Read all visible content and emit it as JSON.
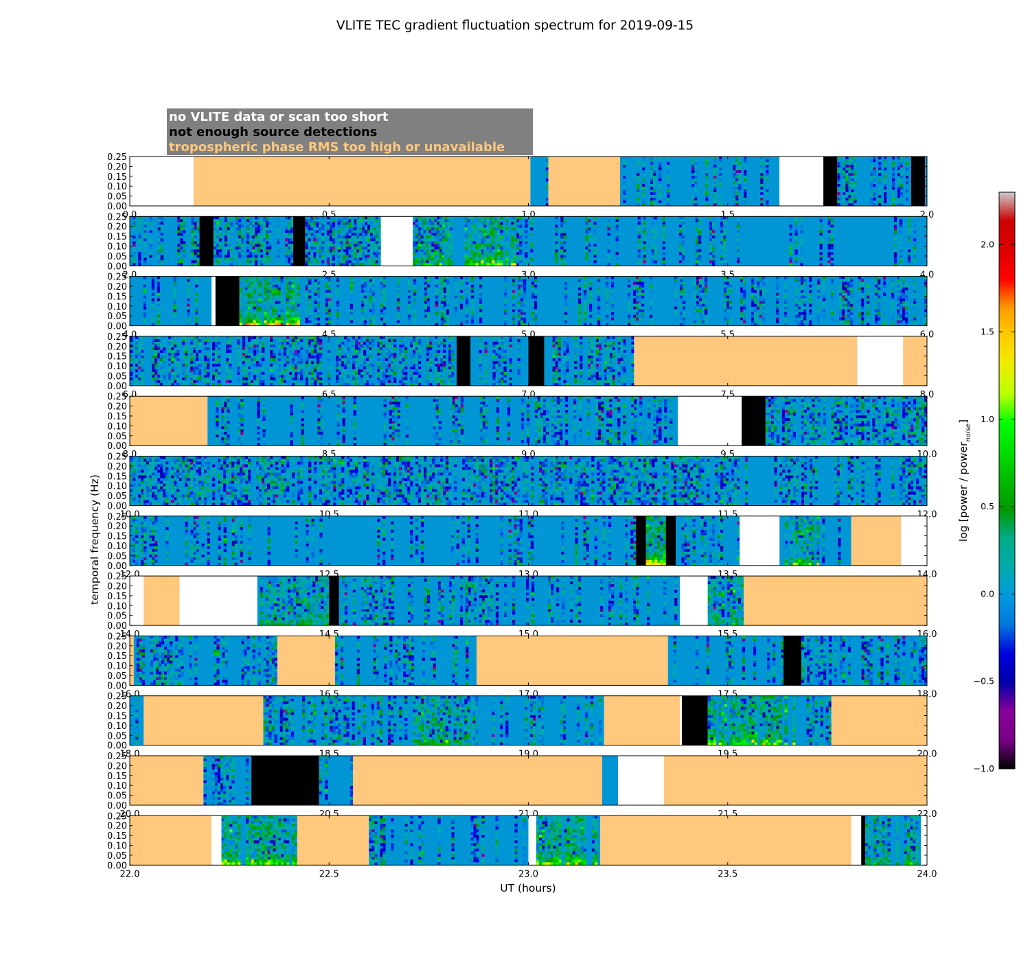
{
  "chart_data": {
    "type": "heatmap",
    "title": "VLITE TEC gradient fluctuation spectrum for 2019-09-15",
    "xlabel": "UT (hours)",
    "ylabel": "temporal frequency (Hz)",
    "ylim": [
      0,
      0.25
    ],
    "yticks": [
      0.0,
      0.05,
      0.1,
      0.15,
      0.2,
      0.25
    ],
    "ytick_labels": [
      "0.00",
      "0.05",
      "0.10",
      "0.15",
      "0.20",
      "0.25"
    ],
    "legend": [
      {
        "label": "no VLITE data or scan too short",
        "text_color": "#ffffff"
      },
      {
        "label": "not enough source detections",
        "text_color": "#000000"
      },
      {
        "label": "tropospheric phase RMS too high or unavailable",
        "text_color": "#ffc87c"
      }
    ],
    "colorbar": {
      "label": "log [power / power",
      "label_sub": "noise",
      "label_end": "]",
      "range": [
        -1.0,
        2.3
      ],
      "ticks": [
        -1.0,
        -0.5,
        0.0,
        0.5,
        1.0,
        1.5,
        2.0
      ],
      "tick_labels": [
        "−1.0",
        "−0.5",
        "0.0",
        "0.5",
        "1.0",
        "1.5",
        "2.0"
      ],
      "colormap": "nipy_spectral"
    },
    "category_colors": {
      "none": "#ffffff",
      "black": "#000000",
      "tropo": "#ffc87c",
      "base": "#0096d6"
    },
    "rows": [
      {
        "xlim": [
          0.0,
          2.0
        ],
        "tick_labels": [
          "0.0",
          "0.5",
          "1.0",
          "1.5",
          "2.0"
        ],
        "segments": [
          [
            0,
            0.16,
            "none"
          ],
          [
            0.16,
            1.005,
            "tropo"
          ],
          [
            1.005,
            1.05,
            "data",
            0.2
          ],
          [
            1.05,
            1.23,
            "tropo"
          ],
          [
            1.23,
            1.63,
            "data",
            0.3
          ],
          [
            1.63,
            1.74,
            "none"
          ],
          [
            1.74,
            1.775,
            "black"
          ],
          [
            1.775,
            1.96,
            "data",
            0.7
          ],
          [
            1.96,
            1.995,
            "black"
          ],
          [
            1.995,
            2.0,
            "data",
            0.2
          ]
        ]
      },
      {
        "xlim": [
          2.0,
          4.0
        ],
        "tick_labels": [
          "2.0",
          "2.5",
          "3.0",
          "3.5",
          "4.0"
        ],
        "segments": [
          [
            2.0,
            2.175,
            "data",
            0.7
          ],
          [
            2.175,
            2.21,
            "black"
          ],
          [
            2.21,
            2.41,
            "data",
            0.7
          ],
          [
            2.41,
            2.44,
            "black"
          ],
          [
            2.44,
            2.63,
            "data",
            0.7
          ],
          [
            2.63,
            2.71,
            "none"
          ],
          [
            2.71,
            2.81,
            "data",
            0.8,
            0.5
          ],
          [
            2.81,
            2.84,
            "data",
            0.3
          ],
          [
            2.84,
            2.97,
            "data",
            0.85,
            0.9
          ],
          [
            2.97,
            4.0,
            "data",
            0.22
          ]
        ]
      },
      {
        "xlim": [
          4.0,
          6.0
        ],
        "tick_labels": [
          "4.0",
          "4.5",
          "5.0",
          "5.5",
          "6.0"
        ],
        "segments": [
          [
            4.0,
            4.205,
            "data",
            0.15
          ],
          [
            4.205,
            4.215,
            "none"
          ],
          [
            4.215,
            4.275,
            "black"
          ],
          [
            4.275,
            4.44,
            "data",
            0.85,
            1.2
          ],
          [
            4.44,
            4.47,
            "data",
            0.5
          ],
          [
            4.47,
            6.0,
            "data",
            0.38
          ]
        ]
      },
      {
        "xlim": [
          6.0,
          8.0
        ],
        "tick_labels": [
          "6.0",
          "6.5",
          "7.0",
          "7.5",
          "8.0"
        ],
        "segments": [
          [
            6.0,
            6.82,
            "data",
            0.75
          ],
          [
            6.82,
            6.855,
            "black"
          ],
          [
            6.855,
            7.0,
            "data",
            0.55
          ],
          [
            7.0,
            7.04,
            "black"
          ],
          [
            7.04,
            7.265,
            "data",
            0.7
          ],
          [
            7.265,
            7.825,
            "tropo"
          ],
          [
            7.825,
            7.94,
            "none"
          ],
          [
            7.94,
            8.0,
            "tropo"
          ]
        ]
      },
      {
        "xlim": [
          8.0,
          10.0
        ],
        "tick_labels": [
          "8.0",
          "8.5",
          "9.0",
          "9.5",
          "10.0"
        ],
        "segments": [
          [
            8.0,
            8.195,
            "tropo"
          ],
          [
            8.195,
            9.375,
            "data",
            0.35
          ],
          [
            9.375,
            9.535,
            "none"
          ],
          [
            9.535,
            9.595,
            "black"
          ],
          [
            9.595,
            10.0,
            "data",
            0.85
          ]
        ]
      },
      {
        "xlim": [
          10.0,
          12.0
        ],
        "tick_labels": [
          "10.0",
          "10.5",
          "11.0",
          "11.5",
          "12.0"
        ],
        "segments": [
          [
            10.0,
            11.53,
            "data",
            0.8
          ],
          [
            11.53,
            11.63,
            "data",
            0.15
          ],
          [
            11.63,
            12.0,
            "data",
            0.5
          ]
        ]
      },
      {
        "xlim": [
          12.0,
          14.0
        ],
        "tick_labels": [
          "12.0",
          "12.5",
          "13.0",
          "13.5",
          "14.0"
        ],
        "segments": [
          [
            12.0,
            12.27,
            "data",
            0.35
          ],
          [
            12.27,
            12.95,
            "data",
            0.18
          ],
          [
            12.95,
            13.27,
            "data",
            0.35
          ],
          [
            13.27,
            13.295,
            "black"
          ],
          [
            13.295,
            13.345,
            "data",
            0.85,
            1.3
          ],
          [
            13.345,
            13.37,
            "black"
          ],
          [
            13.37,
            13.53,
            "data",
            0.45
          ],
          [
            13.53,
            13.63,
            "none"
          ],
          [
            13.63,
            13.73,
            "data",
            0.75,
            0.7
          ],
          [
            13.73,
            13.81,
            "data",
            0.1
          ],
          [
            13.81,
            13.935,
            "tropo"
          ],
          [
            13.935,
            14.0,
            "none"
          ]
        ]
      },
      {
        "xlim": [
          14.0,
          16.0
        ],
        "tick_labels": [
          "14.0",
          "14.5",
          "15.0",
          "15.5",
          "16.0"
        ],
        "segments": [
          [
            14.0,
            14.035,
            "none"
          ],
          [
            14.035,
            14.125,
            "tropo"
          ],
          [
            14.125,
            14.32,
            "none"
          ],
          [
            14.32,
            14.5,
            "data",
            0.8,
            0.4
          ],
          [
            14.5,
            14.525,
            "black"
          ],
          [
            14.525,
            15.38,
            "data",
            0.35
          ],
          [
            15.38,
            15.45,
            "none"
          ],
          [
            15.45,
            15.54,
            "data",
            0.8,
            0.4
          ],
          [
            15.54,
            16.0,
            "tropo"
          ]
        ]
      },
      {
        "xlim": [
          16.0,
          18.0
        ],
        "tick_labels": [
          "16.0",
          "16.5",
          "17.0",
          "17.5",
          "18.0"
        ],
        "segments": [
          [
            16.0,
            16.01,
            "tropo"
          ],
          [
            16.01,
            16.37,
            "data",
            0.55
          ],
          [
            16.37,
            16.515,
            "tropo"
          ],
          [
            16.515,
            16.87,
            "data",
            0.45
          ],
          [
            16.87,
            17.35,
            "tropo"
          ],
          [
            17.35,
            17.64,
            "data",
            0.35
          ],
          [
            17.64,
            17.685,
            "black"
          ],
          [
            17.685,
            18.0,
            "data",
            0.5
          ]
        ]
      },
      {
        "xlim": [
          18.0,
          20.0
        ],
        "tick_labels": [
          "18.0",
          "18.5",
          "19.0",
          "19.5",
          "20.0"
        ],
        "segments": [
          [
            18.0,
            18.035,
            "data",
            0.3
          ],
          [
            18.035,
            18.335,
            "tropo"
          ],
          [
            18.335,
            18.71,
            "data",
            0.55
          ],
          [
            18.71,
            18.86,
            "data",
            0.8,
            0.4
          ],
          [
            18.86,
            19.19,
            "data",
            0.3
          ],
          [
            19.19,
            19.38,
            "tropo"
          ],
          [
            19.38,
            19.385,
            "none"
          ],
          [
            19.385,
            19.45,
            "black"
          ],
          [
            19.45,
            19.67,
            "data",
            0.85,
            0.9
          ],
          [
            19.67,
            19.76,
            "data",
            0.35
          ],
          [
            19.76,
            20.0,
            "tropo"
          ]
        ]
      },
      {
        "xlim": [
          20.0,
          22.0
        ],
        "tick_labels": [
          "20.0",
          "20.5",
          "21.0",
          "21.5",
          "22.0"
        ],
        "segments": [
          [
            20.0,
            20.185,
            "tropo"
          ],
          [
            20.185,
            20.305,
            "data",
            0.75
          ],
          [
            20.305,
            20.475,
            "black"
          ],
          [
            20.475,
            20.56,
            "data",
            0.35
          ],
          [
            20.56,
            21.185,
            "tropo"
          ],
          [
            21.185,
            21.225,
            "data",
            0.05
          ],
          [
            21.225,
            21.34,
            "none"
          ],
          [
            21.34,
            22.0,
            "tropo"
          ]
        ]
      },
      {
        "xlim": [
          22.0,
          24.0
        ],
        "tick_labels": [
          "22.0",
          "22.5",
          "23.0",
          "23.5",
          "24.0"
        ],
        "segments": [
          [
            22.0,
            22.205,
            "tropo"
          ],
          [
            22.205,
            22.23,
            "none"
          ],
          [
            22.23,
            22.42,
            "data",
            0.85,
            0.9
          ],
          [
            22.42,
            22.6,
            "tropo"
          ],
          [
            22.6,
            23.0,
            "data",
            0.3
          ],
          [
            23.0,
            23.02,
            "none"
          ],
          [
            23.02,
            23.18,
            "data",
            0.85,
            0.9
          ],
          [
            23.18,
            23.81,
            "tropo"
          ],
          [
            23.81,
            23.835,
            "none"
          ],
          [
            23.835,
            23.845,
            "black"
          ],
          [
            23.845,
            23.985,
            "data",
            0.7,
            0.5
          ],
          [
            23.985,
            24.0,
            "none"
          ]
        ]
      }
    ]
  }
}
